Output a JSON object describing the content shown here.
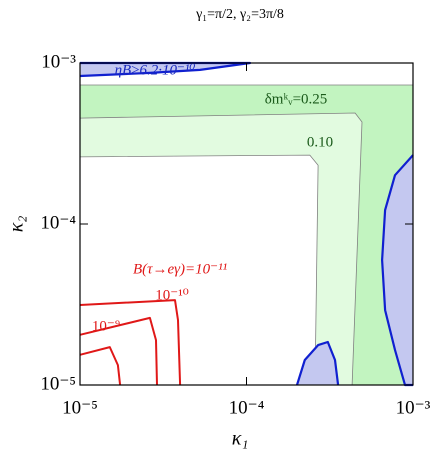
{
  "chart_data": {
    "type": "contour",
    "title": "γ₁=π/2, γ₂=3π/8",
    "xlabel": "κ₁",
    "ylabel": "κ₂",
    "xscale": "log",
    "yscale": "log",
    "xlim": [
      1e-05,
      0.001
    ],
    "ylim": [
      1e-05,
      0.001
    ],
    "xticks": [
      {
        "value": 1e-05,
        "label": "10⁻⁵"
      },
      {
        "value": 0.0001,
        "label": "10⁻⁴"
      },
      {
        "value": 0.001,
        "label": "10⁻³"
      }
    ],
    "yticks": [
      {
        "value": 1e-05,
        "label": "10⁻⁵"
      },
      {
        "value": 0.0001,
        "label": "10⁻⁴"
      },
      {
        "value": 0.001,
        "label": "10⁻³"
      }
    ],
    "contours": [
      {
        "fill": "#c2f4c0",
        "color": "#808080",
        "x": [
          1e-05,
          0.001,
          0.001,
          1e-05
        ],
        "y": [
          0.00073,
          0.00073,
          1e-05,
          1e-05
        ]
      },
      {
        "fill": "#e2fbe0",
        "color": "#808080",
        "x": [
          1e-05,
          0.000449,
          0.000494,
          0.000431,
          1e-05
        ],
        "y": [
          0.000455,
          0.000489,
          0.00043,
          1e-05,
          1e-05
        ]
      },
      {
        "fill": "#ffffff",
        "color": "#808080",
        "x": [
          1e-05,
          0.00024,
          0.000269,
          0.000258,
          1e-05
        ],
        "y": [
          0.000261,
          0.000268,
          0.000232,
          1e-05,
          1e-05
        ]
      },
      {
        "fill": "#c4c8f0",
        "color": "#1020d0",
        "x": [
          1e-05,
          2.63e-05,
          5.26e-05,
          0.000105,
          1e-05
        ],
        "y": [
          0.00083,
          0.000868,
          0.000906,
          0.001,
          0.001
        ]
      },
      {
        "fill": "#c4c8f0",
        "color": "#1020d0",
        "x": [
          0.001,
          0.00078,
          0.00068,
          0.000652,
          0.00068,
          0.00078,
          0.000895,
          0.001
        ],
        "y": [
          0.000268,
          0.000201,
          0.000122,
          5.97e-05,
          2.92e-05,
          1.65e-05,
          1e-05,
          1e-05
        ]
      },
      {
        "fill": "#c4c8f0",
        "color": "#1020d0",
        "x": [
          0.000201,
          0.000224,
          0.000269,
          0.000308,
          0.00034,
          0.000355
        ],
        "y": [
          1e-05,
          1.43e-05,
          1.77e-05,
          1.85e-05,
          1.43e-05,
          1e-05
        ]
      },
      {
        "color": "#e01818",
        "x": [
          1e-05,
          3.72e-05,
          3.88e-05,
          3.99e-05
        ],
        "y": [
          3.14e-05,
          3.37e-05,
          2.53e-05,
          1e-05
        ]
      },
      {
        "color": "#e01818",
        "x": [
          1e-05,
          2.63e-05,
          2.86e-05,
          2.9e-05
        ],
        "y": [
          2.05e-05,
          2.61e-05,
          1.9e-05,
          1e-05
        ]
      },
      {
        "color": "#e01818",
        "x": [
          1e-05,
          1.51e-05,
          1.69e-05,
          1.74e-05
        ],
        "y": [
          1.54e-05,
          1.72e-05,
          1.33e-05,
          1e-05
        ]
      }
    ],
    "annotations": [
      {
        "text": "ηB≥6.2·10⁻¹⁰",
        "color": "#1828c0"
      },
      {
        "text": "δmᵏᵥ=0.25",
        "color": "#1a5a1a"
      },
      {
        "text": "0.10",
        "color": "#1a5a1a"
      },
      {
        "text": "B(τ→eγ)=10⁻¹¹",
        "color": "#e01818"
      },
      {
        "text": "10⁻¹⁰",
        "color": "#e01818"
      },
      {
        "text": "10⁻⁹",
        "color": "#e01818"
      }
    ]
  }
}
